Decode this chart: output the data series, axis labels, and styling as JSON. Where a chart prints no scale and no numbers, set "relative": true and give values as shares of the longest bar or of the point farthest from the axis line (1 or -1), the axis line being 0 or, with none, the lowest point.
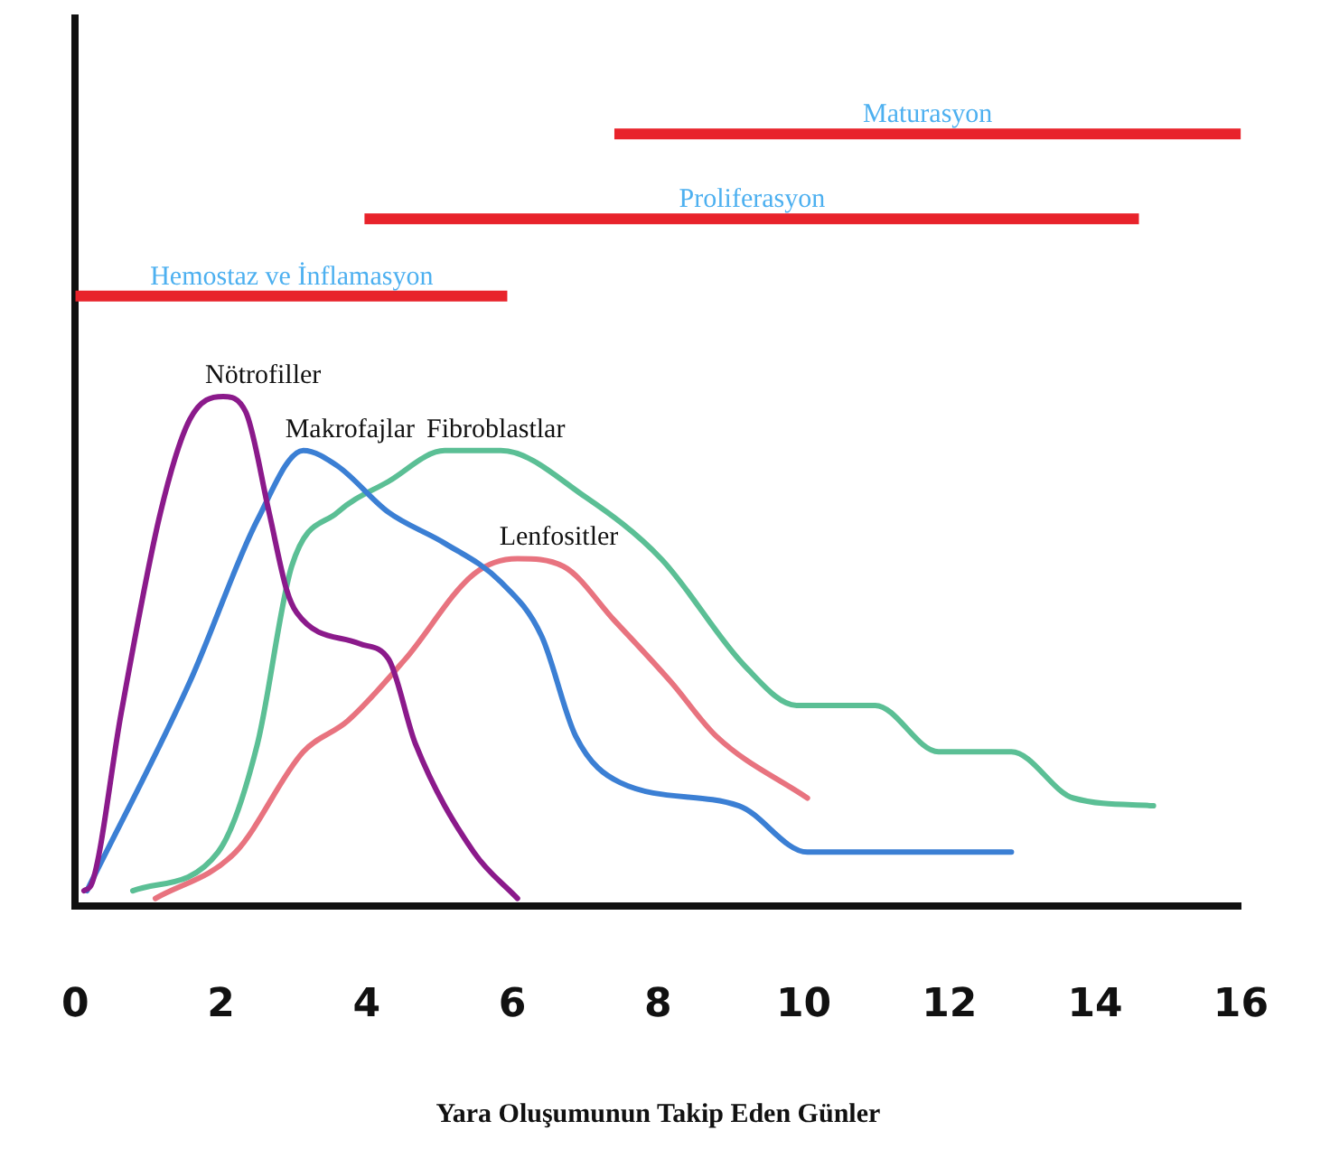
{
  "chart_data": {
    "type": "line",
    "relative": true,
    "xlabel": "Yara Oluşumunun Takip Eden Günler",
    "xlim": [
      0,
      16
    ],
    "xticks": [
      0,
      2,
      4,
      6,
      8,
      10,
      12,
      14,
      16
    ],
    "grid": false,
    "legend": false,
    "marker": "none",
    "line_style": "solid",
    "series": [
      {
        "name": "Hemostaz ve İnflamasyon",
        "color": "#e8232b",
        "x": [
          0,
          2.97,
          5.93
        ],
        "values": [
          0.79,
          0.79,
          0.79
        ]
      },
      {
        "name": "Proliferasyon",
        "color": "#e8232b",
        "x": [
          3.97,
          9.29,
          14.6
        ],
        "values": [
          0.89,
          0.89,
          0.89
        ]
      },
      {
        "name": "Maturasyon",
        "color": "#e8232b",
        "x": [
          7.4,
          11.7,
          16
        ],
        "values": [
          1.0,
          1.0,
          1.0
        ]
      },
      {
        "name": "Nötrofiller",
        "color": "#8b1a8b",
        "x": [
          0.12,
          0.23,
          0.63,
          1.17,
          1.57,
          2.03,
          2.34,
          2.66,
          2.9,
          3.04,
          3.9,
          4.3,
          4.67,
          5.47,
          6.07
        ],
        "values": [
          0.02,
          0.03,
          0.25,
          0.51,
          0.63,
          0.66,
          0.64,
          0.51,
          0.41,
          0.38,
          0.34,
          0.32,
          0.21,
          0.07,
          0.01
        ]
      },
      {
        "name": "Makrofajlar",
        "color": "#3b7fd4",
        "x": [
          0.16,
          1.57,
          2.5,
          3.13,
          3.6,
          4.3,
          5.07,
          5.84,
          6.4,
          6.87,
          7.48,
          9.11,
          10.05,
          12.85
        ],
        "values": [
          0.02,
          0.29,
          0.5,
          0.59,
          0.57,
          0.51,
          0.47,
          0.42,
          0.35,
          0.22,
          0.16,
          0.13,
          0.07,
          0.07
        ]
      },
      {
        "name": "Fibroblastlar",
        "color": "#5bbf95",
        "x": [
          0.79,
          1.96,
          2.5,
          2.97,
          3.6,
          4.3,
          5.07,
          5.84,
          7.0,
          8.04,
          9.2,
          9.9,
          10.98,
          11.85,
          12.85,
          13.7,
          14.8
        ],
        "values": [
          0.02,
          0.07,
          0.21,
          0.44,
          0.51,
          0.55,
          0.59,
          0.59,
          0.53,
          0.45,
          0.31,
          0.26,
          0.26,
          0.2,
          0.2,
          0.14,
          0.13
        ]
      },
      {
        "name": "Lenfositler",
        "color": "#e8737f",
        "x": [
          1.1,
          2.2,
          3.13,
          3.74,
          4.53,
          5.47,
          6.07,
          6.7,
          7.4,
          8.18,
          8.8,
          10.05
        ],
        "values": [
          0.01,
          0.07,
          0.2,
          0.24,
          0.32,
          0.43,
          0.45,
          0.44,
          0.37,
          0.29,
          0.22,
          0.14
        ]
      }
    ]
  }
}
